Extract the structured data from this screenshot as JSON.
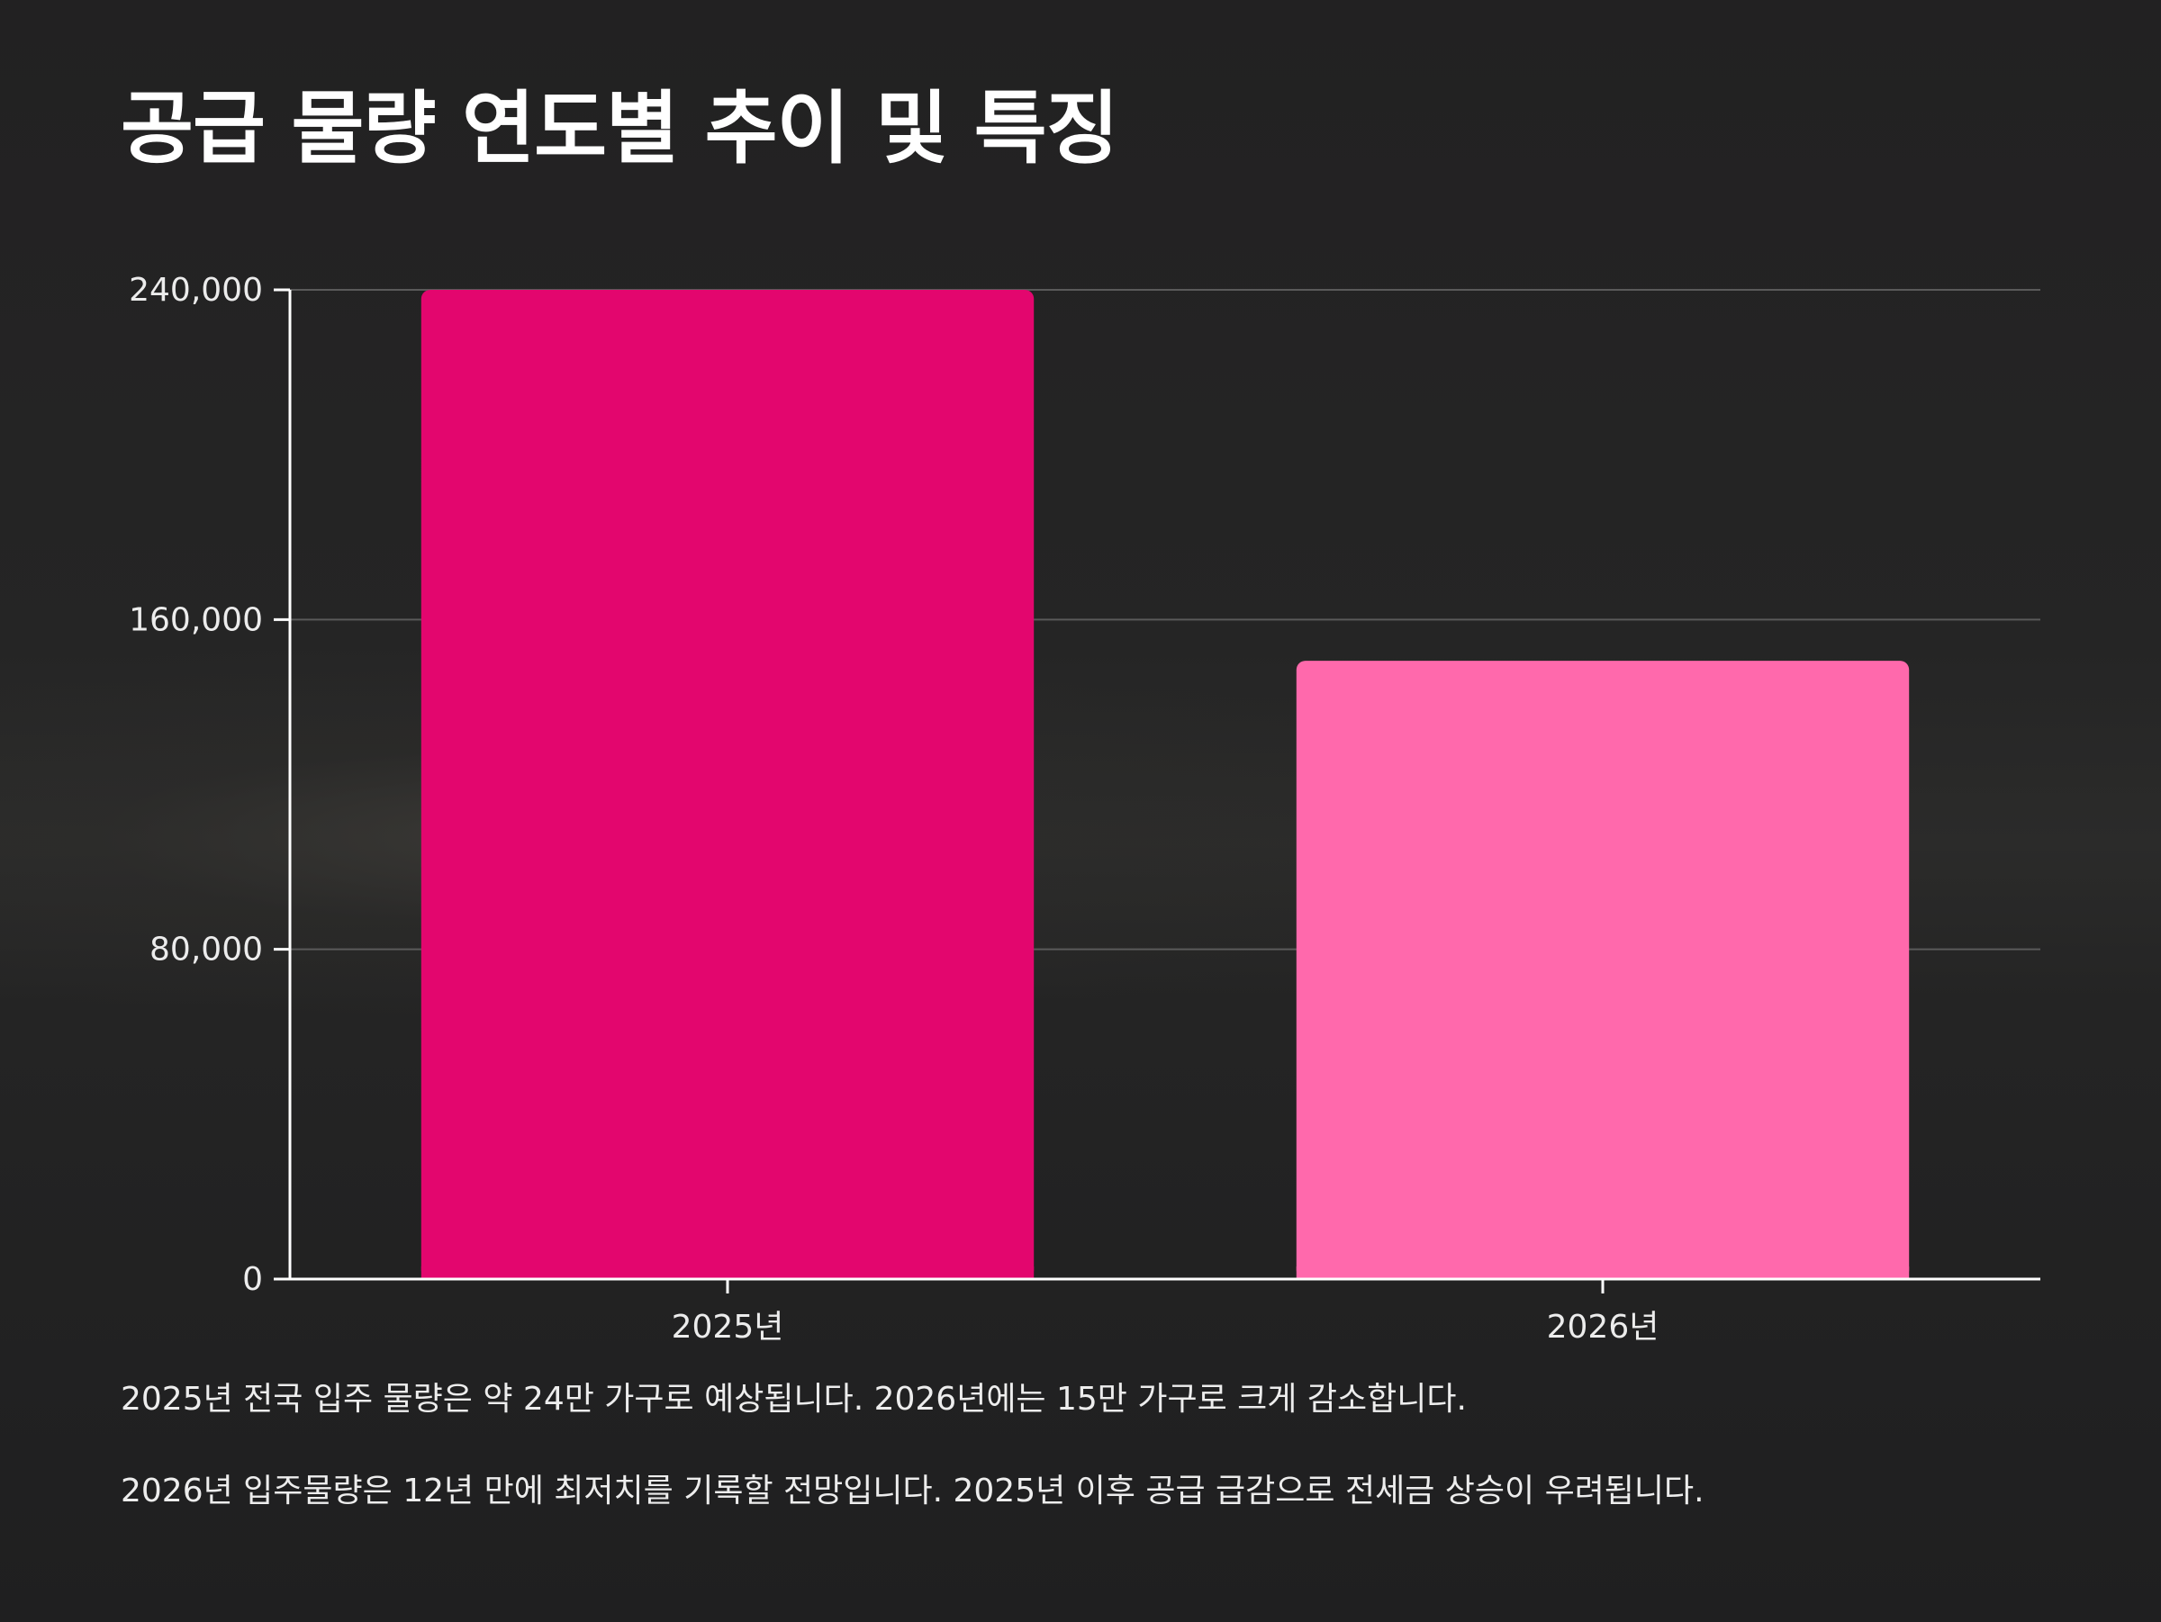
{
  "title": "공급 물량 연도별 추이 및 특징",
  "chart_data": {
    "type": "bar",
    "categories": [
      "2025년",
      "2026년"
    ],
    "values": [
      240000,
      150000
    ],
    "colors": [
      "#e3066e",
      "#ff69ac"
    ],
    "ylim": [
      0,
      240000
    ],
    "yticks": [
      0,
      80000,
      160000,
      240000
    ],
    "ytick_labels": [
      "0",
      "80,000",
      "160,000",
      "240,000"
    ],
    "grid": true,
    "xlabel": "",
    "ylabel": ""
  },
  "notes": [
    "2025년 전국 입주 물량은 약 24만 가구로 예상됩니다. 2026년에는 15만 가구로 크게 감소합니다.",
    "2026년 입주물량은 12년 만에 최저치를 기록할 전망입니다. 2025년 이후 공급 급감으로 전세금 상승이 우려됩니다."
  ]
}
